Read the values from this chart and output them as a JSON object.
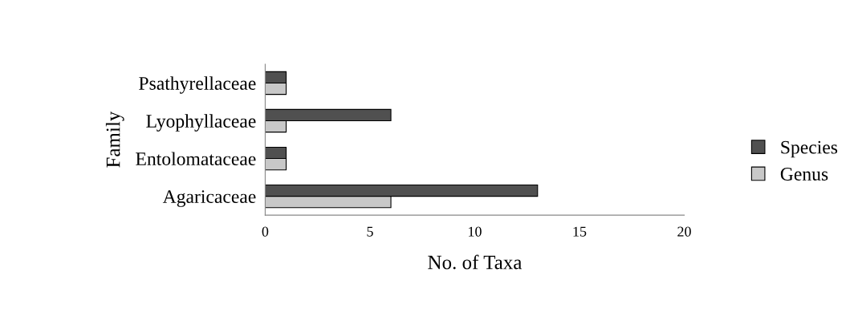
{
  "chart_data": {
    "type": "bar",
    "orientation": "horizontal",
    "xlabel": "No. of Taxa",
    "ylabel": "Family",
    "categories": [
      "Psathyrellaceae",
      "Lyophyllaceae",
      "Entolomataceae",
      "Agaricaceae"
    ],
    "series": [
      {
        "name": "Species",
        "color": "#505050",
        "values": [
          1,
          6,
          1,
          13
        ]
      },
      {
        "name": "Genus",
        "color": "#c8c8c8",
        "values": [
          1,
          1,
          1,
          6
        ]
      }
    ],
    "xlim": [
      0,
      20
    ],
    "xticks": [
      0,
      5,
      10,
      15,
      20
    ],
    "grid": false,
    "legend": "right"
  }
}
